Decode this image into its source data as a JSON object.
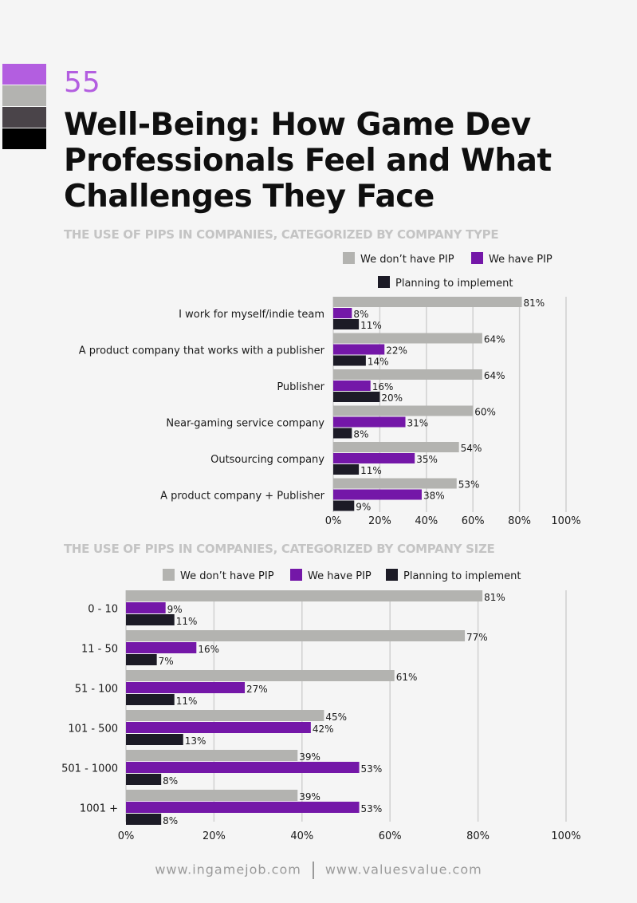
{
  "colors": {
    "not_have": "#b3b3b0",
    "have": "#7417a8",
    "planning": "#1c1b26",
    "gridline": "#d0d0d0",
    "swatches": [
      "#b35ee0",
      "#b3b3b0",
      "#4a4449",
      "#000000"
    ]
  },
  "header": {
    "page_number": "55",
    "title": "Well-Being: How Game Dev Professionals Feel and What Challenges They Face"
  },
  "footer": {
    "site1": "www.ingamejob.com",
    "site2": "www.valuesvalue.com"
  },
  "chart_data": [
    {
      "type": "bar",
      "orientation": "horizontal",
      "title": "THE USE OF PIPS IN COMPANIES, CATEGORIZED BY COMPANY TYPE",
      "categories": [
        "I work for myself/indie team",
        "A product company that works with a publisher",
        "Publisher",
        "Near-gaming service company",
        "Outsourcing company",
        "A product company + Publisher"
      ],
      "series": [
        {
          "name": "We don’t have PIP",
          "values": [
            81,
            64,
            64,
            60,
            54,
            53
          ]
        },
        {
          "name": "We have PIP",
          "values": [
            8,
            22,
            16,
            31,
            35,
            38
          ]
        },
        {
          "name": "Planning to implement",
          "values": [
            11,
            14,
            20,
            8,
            11,
            9
          ]
        }
      ],
      "xlim": [
        0,
        100
      ],
      "xticks": [
        "0%",
        "20%",
        "40%",
        "60%",
        "80%",
        "100%"
      ],
      "legend": "top-right",
      "grid": true
    },
    {
      "type": "bar",
      "orientation": "horizontal",
      "title": "THE USE OF PIPS IN COMPANIES, CATEGORIZED BY COMPANY SIZE",
      "categories": [
        "0 - 10",
        "11 - 50",
        "51 - 100",
        "101 - 500",
        "501 - 1000",
        "1001 +"
      ],
      "series": [
        {
          "name": "We don’t have PIP",
          "values": [
            81,
            77,
            61,
            45,
            39,
            39
          ]
        },
        {
          "name": "We have PIP",
          "values": [
            9,
            16,
            27,
            42,
            53,
            53
          ]
        },
        {
          "name": "Planning to implement",
          "values": [
            11,
            7,
            11,
            13,
            8,
            8
          ]
        }
      ],
      "xlim": [
        0,
        100
      ],
      "xticks": [
        "0%",
        "20%",
        "40%",
        "60%",
        "80%",
        "100%"
      ],
      "legend": "top",
      "grid": true
    }
  ]
}
